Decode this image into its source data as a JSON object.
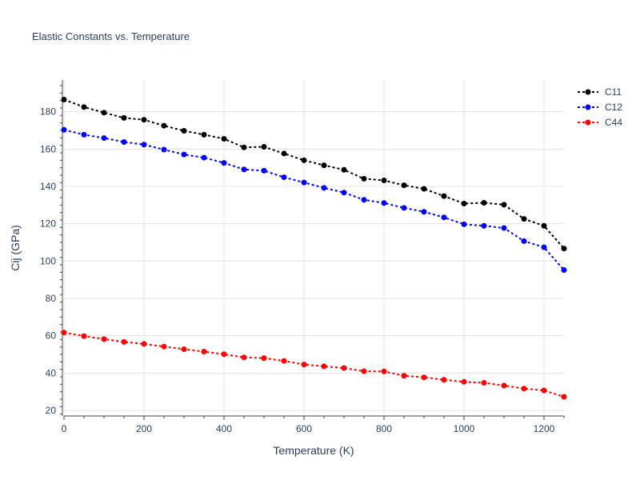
{
  "chart_data": {
    "type": "line",
    "title": "Elastic Constants vs. Temperature",
    "xlabel": "Temperature (K)",
    "ylabel": "Cij (GPa)",
    "xlim": [
      0,
      1250
    ],
    "ylim": [
      17,
      197
    ],
    "xticks": [
      0,
      200,
      400,
      600,
      800,
      1000,
      1200
    ],
    "yticks": [
      20,
      40,
      60,
      80,
      100,
      120,
      140,
      160,
      180
    ],
    "grid": true,
    "legend_position": "top-right",
    "x": [
      0,
      50,
      100,
      150,
      200,
      250,
      300,
      350,
      400,
      450,
      500,
      550,
      600,
      650,
      700,
      750,
      800,
      850,
      900,
      950,
      1000,
      1050,
      1100,
      1150,
      1200,
      1250
    ],
    "series": [
      {
        "name": "C11",
        "color": "#000000",
        "values": [
          186.5,
          182.5,
          179.5,
          176.7,
          175.7,
          172.5,
          169.8,
          167.7,
          165.5,
          160.9,
          161.2,
          157.6,
          154.0,
          151.3,
          148.9,
          144.1,
          143.2,
          140.6,
          138.7,
          134.8,
          130.8,
          131.2,
          130.2,
          122.6,
          118.9,
          106.7
        ]
      },
      {
        "name": "C12",
        "color": "#0000ff",
        "values": [
          170.3,
          167.7,
          165.9,
          163.8,
          162.4,
          159.7,
          157.1,
          155.4,
          152.6,
          149.1,
          148.4,
          144.9,
          142.1,
          139.2,
          136.7,
          132.8,
          131.1,
          128.5,
          126.4,
          123.4,
          119.7,
          118.9,
          117.7,
          110.7,
          107.4,
          95.2
        ]
      },
      {
        "name": "C44",
        "color": "#ff0000",
        "values": [
          61.7,
          59.8,
          58.2,
          56.7,
          55.6,
          54.2,
          52.8,
          51.5,
          50.1,
          48.4,
          48.0,
          46.5,
          44.6,
          43.6,
          42.7,
          41.0,
          40.9,
          38.6,
          37.7,
          36.4,
          35.3,
          34.8,
          33.3,
          31.7,
          30.7,
          27.3
        ]
      }
    ]
  }
}
